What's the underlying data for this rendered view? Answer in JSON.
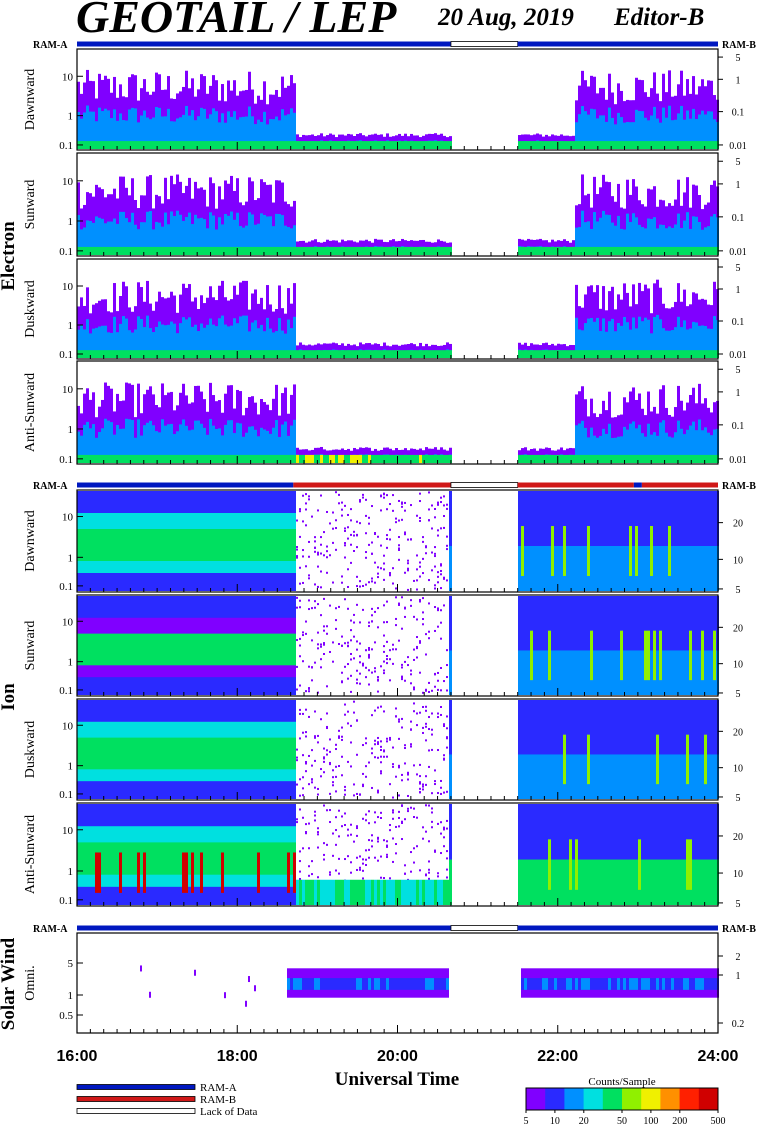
{
  "header": {
    "title": "GEOTAIL / LEP",
    "date": "20 Aug, 2019",
    "editor": "Editor-B"
  },
  "mode_bar": {
    "ram_a": "RAM-A",
    "ram_b": "RAM-B"
  },
  "chart_data": [
    {
      "type": "heatmap",
      "group": "Electron",
      "x_range": [
        "16:00",
        "24:00"
      ],
      "x_ticks": [
        "16:00",
        "18:00",
        "20:00",
        "22:00",
        "24:00"
      ],
      "xlabel": "Universal Time",
      "data_gap": [
        "20:40",
        "21:30"
      ],
      "panels": [
        {
          "ylabel": "Dawnward",
          "left_ticks": [
            "10",
            "1",
            "0.1"
          ],
          "right_ticks": [
            "5",
            "1",
            "0.1",
            "0.01"
          ]
        },
        {
          "ylabel": "Sunward",
          "left_ticks": [
            "10",
            "1",
            "0.1"
          ],
          "right_ticks": [
            "5",
            "1",
            "0.1",
            "0.01"
          ]
        },
        {
          "ylabel": "Duskward",
          "left_ticks": [
            "10",
            "1",
            "0.1"
          ],
          "right_ticks": [
            "5",
            "1",
            "0.1",
            "0.01"
          ]
        },
        {
          "ylabel": "Anti-Sunward",
          "left_ticks": [
            "10",
            "1",
            "0.1"
          ],
          "right_ticks": [
            "5",
            "1",
            "0.1",
            "0.01"
          ]
        }
      ]
    },
    {
      "type": "heatmap",
      "group": "Ion",
      "x_range": [
        "16:00",
        "24:00"
      ],
      "data_gap": [
        "20:40",
        "21:30"
      ],
      "panels": [
        {
          "ylabel": "Dawnward",
          "left_ticks": [
            "10",
            "1",
            "0.1"
          ],
          "right_ticks": [
            "20",
            "10",
            "5"
          ]
        },
        {
          "ylabel": "Sunward",
          "left_ticks": [
            "10",
            "1",
            "0.1"
          ],
          "right_ticks": [
            "20",
            "10",
            "5"
          ]
        },
        {
          "ylabel": "Duskward",
          "left_ticks": [
            "10",
            "1",
            "0.1"
          ],
          "right_ticks": [
            "20",
            "10",
            "5"
          ]
        },
        {
          "ylabel": "Anti-Sunward",
          "left_ticks": [
            "10",
            "1",
            "0.1"
          ],
          "right_ticks": [
            "20",
            "10",
            "5"
          ]
        }
      ]
    },
    {
      "type": "heatmap",
      "group": "Solar Wind",
      "x_range": [
        "16:00",
        "24:00"
      ],
      "data_gap": [
        "20:40",
        "21:30"
      ],
      "panels": [
        {
          "ylabel": "Omni.",
          "left_ticks": [
            "5",
            "1",
            "0.5"
          ],
          "right_ticks": [
            "2",
            "1",
            "0.2"
          ]
        }
      ]
    }
  ],
  "legend": {
    "items": [
      {
        "label": "RAM-A",
        "color": "#0018c0"
      },
      {
        "label": "RAM-B",
        "color": "#d01818"
      },
      {
        "label": "Lack of Data",
        "color": "#ffffff"
      }
    ]
  },
  "colorbar": {
    "title": "Counts/Sample",
    "ticks": [
      "5",
      "10",
      "20",
      "50",
      "100",
      "200",
      "500"
    ],
    "colors": [
      "#8000ff",
      "#2a2aff",
      "#0090ff",
      "#00e0e0",
      "#00e060",
      "#90f000",
      "#f0f000",
      "#ff9000",
      "#ff2000",
      "#d00000"
    ]
  }
}
